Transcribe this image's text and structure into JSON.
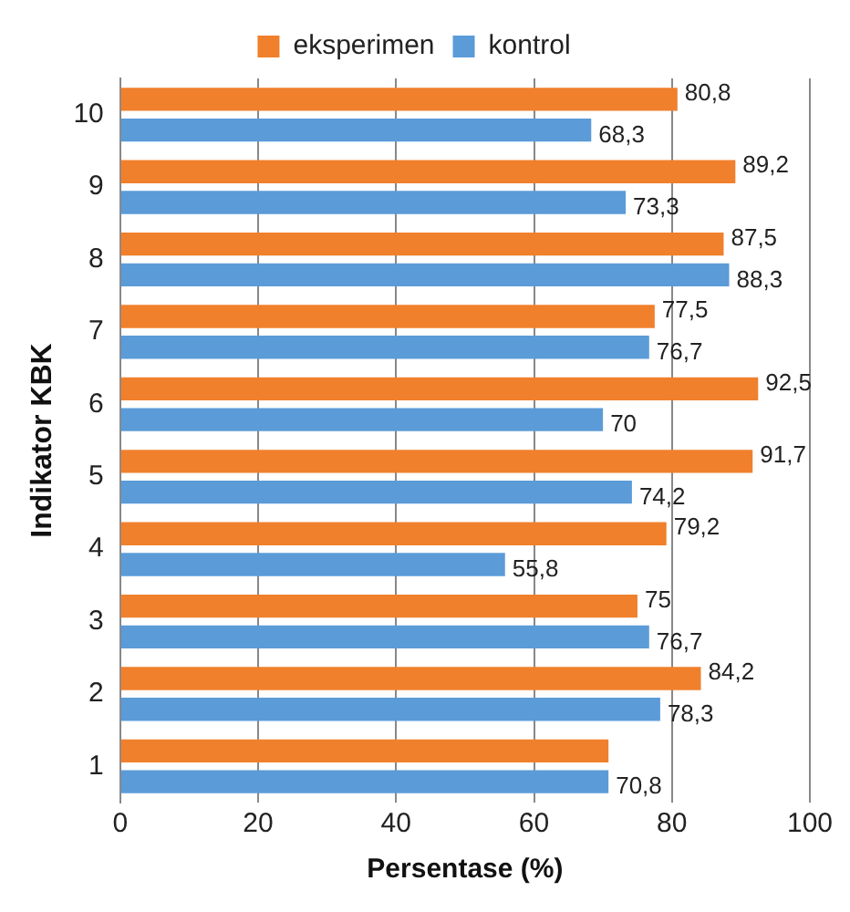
{
  "chart_data": {
    "type": "bar",
    "orientation": "horizontal",
    "xlabel": "Persentase (%)",
    "ylabel": "Indikator KBK",
    "categories": [
      "10",
      "9",
      "8",
      "7",
      "6",
      "5",
      "4",
      "3",
      "2",
      "1"
    ],
    "series": [
      {
        "name": "eksperimen",
        "color": "#f0802c",
        "values": [
          80.8,
          89.2,
          87.5,
          77.5,
          92.5,
          91.7,
          79.2,
          75,
          84.2,
          70.8
        ],
        "value_labels": [
          "80,8",
          "89,2",
          "87,5",
          "77,5",
          "92,5",
          "91,7",
          "79,2",
          "75",
          "84,2",
          null
        ]
      },
      {
        "name": "kontrol",
        "color": "#5b9bd8",
        "values": [
          68.3,
          73.3,
          88.3,
          76.7,
          70,
          74.2,
          55.8,
          76.7,
          78.3,
          70.8
        ],
        "value_labels": [
          "68,3",
          "73,3",
          "88,3",
          "76,7",
          "70",
          "74,2",
          "55,8",
          "76,7",
          "78,3",
          "70,8"
        ]
      }
    ],
    "xlim": [
      0,
      100
    ],
    "xticks": [
      0,
      20,
      40,
      60,
      80,
      100
    ],
    "grid": "x",
    "legend": "top"
  }
}
